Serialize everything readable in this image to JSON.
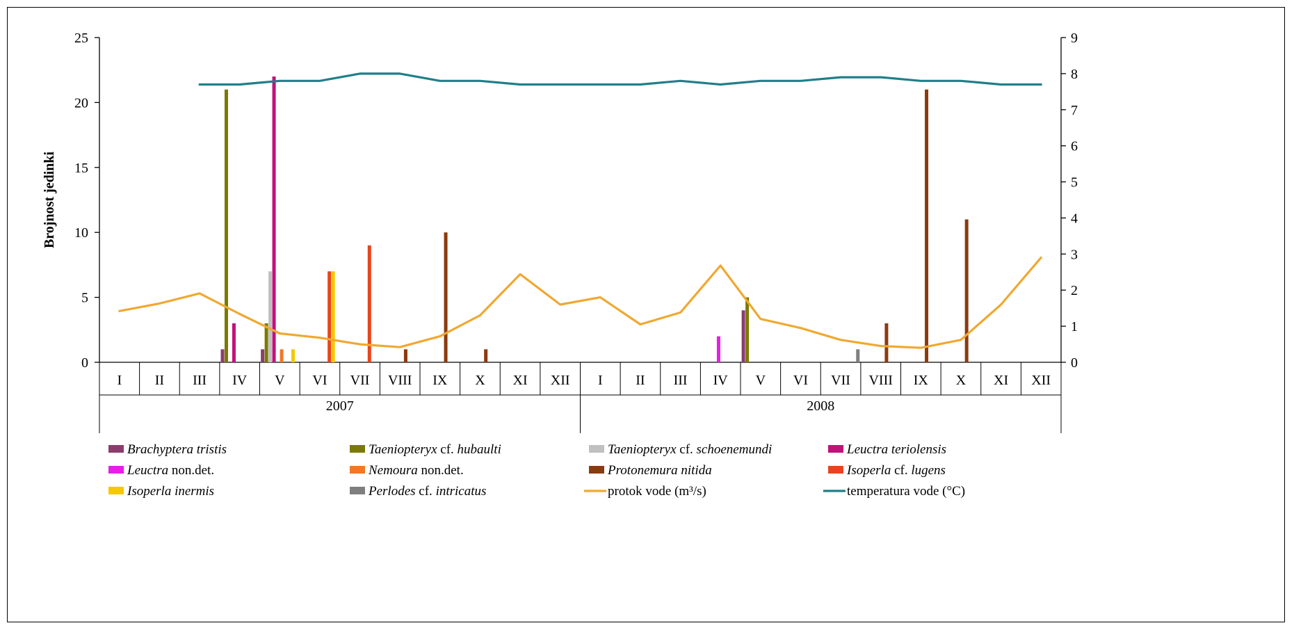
{
  "chart_data": {
    "type": "bar",
    "ylabel": "Brojnost jedinki",
    "ylim": [
      0,
      25
    ],
    "yticks": [
      0,
      5,
      10,
      15,
      20,
      25
    ],
    "y2lim": [
      0,
      9
    ],
    "y2ticks": [
      0,
      1,
      2,
      3,
      4,
      5,
      6,
      7,
      8,
      9
    ],
    "grid": false,
    "legend_placement": "bottom",
    "categories": [
      "I",
      "II",
      "III",
      "IV",
      "V",
      "VI",
      "VII",
      "VIII",
      "IX",
      "X",
      "XI",
      "XII",
      "I",
      "II",
      "III",
      "IV",
      "V",
      "VI",
      "VII",
      "VIII",
      "IX",
      "X",
      "XI",
      "XII"
    ],
    "groups": [
      {
        "label": "2007",
        "span": [
          0,
          11
        ]
      },
      {
        "label": "2008",
        "span": [
          12,
          23
        ]
      }
    ],
    "series": [
      {
        "name": "Brachyptera tristis",
        "legend_parts": [
          [
            "Brachyptera tristis",
            true
          ]
        ],
        "color": "#8b3d6e",
        "values": [
          0,
          0,
          0,
          1,
          1,
          0,
          0,
          0,
          0,
          0,
          0,
          0,
          0,
          0,
          0,
          0,
          4,
          0,
          0,
          0,
          0,
          0,
          0,
          0
        ]
      },
      {
        "name": "Taeniopteryx cf. hubaulti",
        "legend_parts": [
          [
            "Taeniopteryx",
            true
          ],
          [
            " cf. ",
            false
          ],
          [
            "hubaulti",
            true
          ]
        ],
        "color": "#7a7a00",
        "values": [
          0,
          0,
          0,
          21,
          3,
          0,
          0,
          0,
          0,
          0,
          0,
          0,
          0,
          0,
          0,
          0,
          5,
          0,
          0,
          0,
          0,
          0,
          0,
          0
        ]
      },
      {
        "name": "Taeniopteryx cf. schoenemundi",
        "legend_parts": [
          [
            "Taeniopteryx",
            true
          ],
          [
            " cf. ",
            false
          ],
          [
            "schoenemundi",
            true
          ]
        ],
        "color": "#c0c0c0",
        "values": [
          0,
          0,
          0,
          0,
          7,
          0,
          0,
          0,
          0,
          0,
          0,
          0,
          0,
          0,
          0,
          0,
          0,
          0,
          0,
          0,
          0,
          0,
          0,
          0
        ]
      },
      {
        "name": "Leuctra teriolensis",
        "legend_parts": [
          [
            "Leuctra teriolensis",
            true
          ]
        ],
        "color": "#c2127a",
        "values": [
          0,
          0,
          0,
          3,
          22,
          0,
          0,
          0,
          0,
          0,
          0,
          0,
          0,
          0,
          0,
          0,
          0,
          0,
          0,
          0,
          0,
          0,
          0,
          0
        ]
      },
      {
        "name": "Leuctra non.det.",
        "legend_parts": [
          [
            "Leuctra",
            true
          ],
          [
            " non.det.",
            false
          ]
        ],
        "color": "#e61ee6",
        "values": [
          0,
          0,
          0,
          0,
          0,
          0,
          0,
          0,
          0,
          0,
          0,
          0,
          0,
          0,
          0,
          2,
          0,
          0,
          0,
          0,
          0,
          0,
          0,
          0
        ]
      },
      {
        "name": "Nemoura non.det.",
        "legend_parts": [
          [
            "Nemoura",
            true
          ],
          [
            " non.det.",
            false
          ]
        ],
        "color": "#f07828",
        "values": [
          0,
          0,
          0,
          0,
          1,
          0,
          0,
          0,
          0,
          0,
          0,
          0,
          0,
          0,
          0,
          0,
          0,
          0,
          0,
          0,
          0,
          0,
          0,
          0
        ]
      },
      {
        "name": "Protonemura nitida",
        "legend_parts": [
          [
            "Protonemura nitida",
            true
          ]
        ],
        "color": "#8b3a0f",
        "values": [
          0,
          0,
          0,
          0,
          0,
          0,
          0,
          1,
          10,
          1,
          0,
          0,
          0,
          0,
          0,
          0,
          0,
          0,
          0,
          3,
          21,
          11,
          0,
          0
        ]
      },
      {
        "name": "Isoperla cf. lugens",
        "legend_parts": [
          [
            "Isoperla",
            true
          ],
          [
            " cf. ",
            false
          ],
          [
            "lugens",
            true
          ]
        ],
        "color": "#e8451c",
        "values": [
          0,
          0,
          0,
          0,
          0,
          7,
          9,
          0,
          0,
          0,
          0,
          0,
          0,
          0,
          0,
          0,
          0,
          0,
          0,
          0,
          0,
          0,
          0,
          0
        ]
      },
      {
        "name": "Isoperla inermis",
        "legend_parts": [
          [
            "Isoperla inermis",
            true
          ]
        ],
        "color": "#f5c800",
        "values": [
          0,
          0,
          0,
          0,
          1,
          7,
          0,
          0,
          0,
          0,
          0,
          0,
          0,
          0,
          0,
          0,
          0,
          0,
          0,
          0,
          0,
          0,
          0,
          0
        ]
      },
      {
        "name": "Perlodes cf. intricatus",
        "legend_parts": [
          [
            "Perlodes",
            true
          ],
          [
            " cf. ",
            false
          ],
          [
            "intricatus",
            true
          ]
        ],
        "color": "#7f7f7f",
        "values": [
          0,
          0,
          0,
          0,
          0,
          0,
          0,
          0,
          0,
          0,
          0,
          0,
          0,
          0,
          0,
          0,
          0,
          0,
          1,
          0,
          0,
          0,
          0,
          0
        ]
      }
    ],
    "lines": [
      {
        "name": "protok vode (m³/s)",
        "legend_parts": [
          [
            "protok vode (m³/s)",
            false
          ]
        ],
        "color": "#f0a830",
        "axis": "right",
        "x_start": 0,
        "values": [
          1.42,
          1.63,
          1.91,
          1.34,
          0.8,
          0.68,
          0.5,
          0.42,
          0.72,
          1.3,
          2.44,
          1.6,
          1.8,
          1.05,
          1.38,
          2.68,
          1.2,
          0.95,
          0.62,
          0.45,
          0.4,
          0.62,
          1.6,
          2.9
        ]
      },
      {
        "name": "temperatura vode (°C)",
        "legend_parts": [
          [
            "temperatura vode (°C)",
            false
          ]
        ],
        "color": "#1f7f8a",
        "axis": "right",
        "x_start": 2,
        "values": [
          7.7,
          7.7,
          7.8,
          7.8,
          8.0,
          8.0,
          7.8,
          7.8,
          7.7,
          7.7,
          7.7,
          7.7,
          7.8,
          7.7,
          7.8,
          7.8,
          7.9,
          7.9,
          7.8,
          7.8,
          7.7,
          7.7
        ]
      }
    ]
  }
}
